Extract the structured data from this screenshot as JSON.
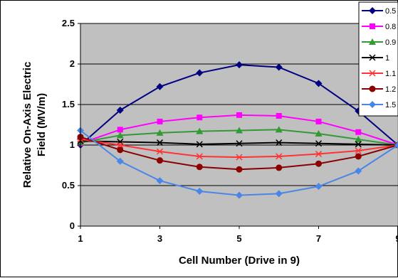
{
  "chart_data": {
    "type": "line",
    "title": "",
    "xlabel": "Cell Number (Drive in 9)",
    "ylabel": "Relative On-Axis Electric Field (MV/m)",
    "xlim": [
      1,
      9
    ],
    "ylim": [
      0,
      2.5
    ],
    "x_ticks": [
      "1",
      "3",
      "5",
      "7",
      "9"
    ],
    "y_ticks": [
      "0",
      "0.5",
      "1",
      "1.5",
      "2",
      "2.5"
    ],
    "grid": "horizontal",
    "plot_background": "#c0c0c0",
    "legend_position": "top-right",
    "x": [
      1,
      2,
      3,
      4,
      5,
      6,
      7,
      8,
      9
    ],
    "series": [
      {
        "name": "0.5",
        "color": "#000080",
        "marker": "diamond",
        "values": [
          1.0,
          1.43,
          1.72,
          1.89,
          1.99,
          1.96,
          1.76,
          1.42,
          1.0
        ]
      },
      {
        "name": "0.8",
        "color": "#ff00ff",
        "marker": "square",
        "values": [
          1.02,
          1.19,
          1.29,
          1.34,
          1.37,
          1.36,
          1.29,
          1.16,
          1.0
        ]
      },
      {
        "name": "0.9",
        "color": "#339933",
        "marker": "triangle",
        "values": [
          1.03,
          1.12,
          1.15,
          1.17,
          1.18,
          1.19,
          1.14,
          1.07,
          1.0
        ]
      },
      {
        "name": "1",
        "color": "#000000",
        "marker": "x",
        "values": [
          1.05,
          1.04,
          1.03,
          1.01,
          1.02,
          1.03,
          1.02,
          1.01,
          1.0
        ]
      },
      {
        "name": "1.1",
        "color": "#ff3333",
        "marker": "star",
        "values": [
          1.07,
          1.0,
          0.92,
          0.86,
          0.85,
          0.86,
          0.89,
          0.93,
          1.0
        ]
      },
      {
        "name": "1.2",
        "color": "#8b0000",
        "marker": "circle",
        "values": [
          1.1,
          0.94,
          0.81,
          0.73,
          0.7,
          0.72,
          0.77,
          0.86,
          1.0
        ]
      },
      {
        "name": "1.5",
        "color": "#4a86e8",
        "marker": "diamond",
        "values": [
          1.18,
          0.8,
          0.56,
          0.43,
          0.38,
          0.4,
          0.49,
          0.68,
          1.0
        ]
      }
    ]
  }
}
